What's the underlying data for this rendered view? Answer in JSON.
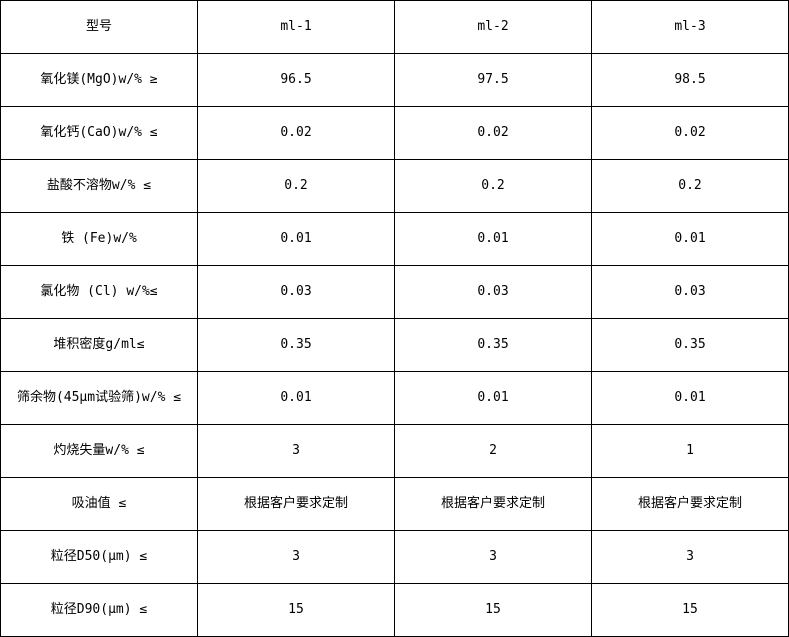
{
  "header": [
    "型号",
    "ml-1",
    "ml-2",
    "ml-3"
  ],
  "rows": [
    [
      "氧化镁(MgO)w/%  ≥",
      "96.5",
      "97.5",
      "98.5"
    ],
    [
      "氧化钙(CaO)w/%  ≤",
      "0.02",
      "0.02",
      "0.02"
    ],
    [
      "盐酸不溶物w/%  ≤",
      "0.2",
      "0.2",
      "0.2"
    ],
    [
      "铁 (Fe)w/%",
      "0.01",
      "0.01",
      "0.01"
    ],
    [
      "氯化物 (Cl) w/%≤",
      "0.03",
      "0.03",
      "0.03"
    ],
    [
      "堆积密度g/ml≤",
      "0.35",
      "0.35",
      "0.35"
    ],
    [
      "筛余物(45μm试验筛)w/% ≤",
      "0.01",
      "0.01",
      "0.01"
    ],
    [
      "灼烧失量w/%  ≤",
      "3",
      "2",
      "1"
    ],
    [
      "吸油值  ≤",
      "根据客户要求定制",
      "根据客户要求定制",
      "根据客户要求定制"
    ],
    [
      "粒径D50(μm) ≤",
      "3",
      "3",
      "3"
    ],
    [
      "粒径D90(μm) ≤",
      "15",
      "15",
      "15"
    ]
  ]
}
